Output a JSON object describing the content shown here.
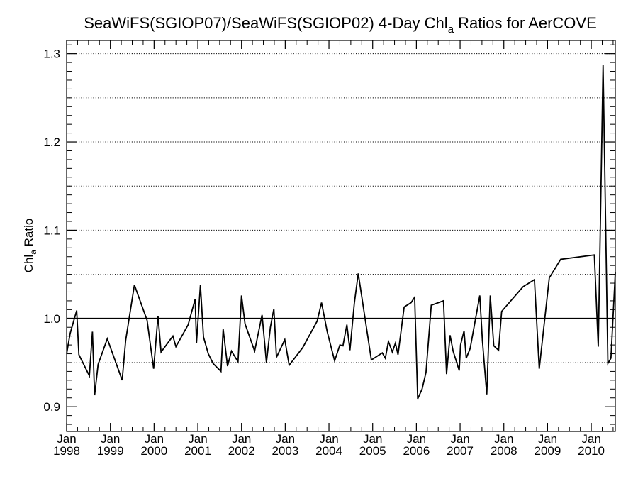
{
  "chart_data": {
    "type": "line",
    "title": "SeaWiFS(SGIOP07)/SeaWiFS(SGIOP02) 4-Day Chl",
    "title_subscript": "a",
    "title_suffix": " Ratios for AerCOVE",
    "ylabel": "Chl",
    "ylabel_subscript": "a",
    "ylabel_suffix": " Ratio",
    "xlabel": "",
    "xlim": [
      1998.0,
      2010.55
    ],
    "ylim": [
      0.872,
      1.315
    ],
    "grid": true,
    "reference_line": 1.0,
    "y_ticks": [
      {
        "value": 0.9,
        "label": "0.9"
      },
      {
        "value": 1.0,
        "label": "1.0"
      },
      {
        "value": 1.1,
        "label": "1.1"
      },
      {
        "value": 1.2,
        "label": "1.2"
      },
      {
        "value": 1.3,
        "label": "1.3"
      }
    ],
    "y_gridlines": [
      0.95,
      1.0,
      1.05,
      1.1,
      1.15,
      1.2,
      1.25,
      1.3
    ],
    "x_ticks": [
      {
        "value": 1998,
        "month": "Jan",
        "year": "1998"
      },
      {
        "value": 1999,
        "month": "Jan",
        "year": "1999"
      },
      {
        "value": 2000,
        "month": "Jan",
        "year": "2000"
      },
      {
        "value": 2001,
        "month": "Jan",
        "year": "2001"
      },
      {
        "value": 2002,
        "month": "Jan",
        "year": "2002"
      },
      {
        "value": 2003,
        "month": "Jan",
        "year": "2003"
      },
      {
        "value": 2004,
        "month": "Jan",
        "year": "2004"
      },
      {
        "value": 2005,
        "month": "Jan",
        "year": "2005"
      },
      {
        "value": 2006,
        "month": "Jan",
        "year": "2006"
      },
      {
        "value": 2007,
        "month": "Jan",
        "year": "2007"
      },
      {
        "value": 2008,
        "month": "Jan",
        "year": "2008"
      },
      {
        "value": 2009,
        "month": "Jan",
        "year": "2009"
      },
      {
        "value": 2010,
        "month": "Jan",
        "year": "2010"
      }
    ],
    "series": [
      {
        "points": [
          [
            1998.0,
            0.96
          ],
          [
            1998.08,
            0.983
          ],
          [
            1998.23,
            1.009
          ],
          [
            1998.28,
            0.959
          ],
          [
            1998.52,
            0.935
          ],
          [
            1998.59,
            0.985
          ],
          [
            1998.64,
            0.913
          ],
          [
            1998.72,
            0.948
          ],
          [
            1998.93,
            0.977
          ],
          [
            1999.09,
            0.955
          ],
          [
            1999.27,
            0.93
          ],
          [
            1999.35,
            0.975
          ],
          [
            1999.55,
            1.038
          ],
          [
            1999.84,
            0.998
          ],
          [
            1999.99,
            0.943
          ],
          [
            2000.09,
            1.003
          ],
          [
            2000.16,
            0.962
          ],
          [
            2000.43,
            0.98
          ],
          [
            2000.5,
            0.968
          ],
          [
            2000.78,
            0.993
          ],
          [
            2000.94,
            1.022
          ],
          [
            2000.97,
            0.972
          ],
          [
            2001.06,
            1.038
          ],
          [
            2001.13,
            0.979
          ],
          [
            2001.24,
            0.96
          ],
          [
            2001.35,
            0.949
          ],
          [
            2001.53,
            0.94
          ],
          [
            2001.58,
            0.988
          ],
          [
            2001.68,
            0.946
          ],
          [
            2001.77,
            0.963
          ],
          [
            2001.92,
            0.951
          ],
          [
            2002.0,
            1.026
          ],
          [
            2002.08,
            0.994
          ],
          [
            2002.3,
            0.963
          ],
          [
            2002.47,
            1.004
          ],
          [
            2002.57,
            0.95
          ],
          [
            2002.66,
            0.99
          ],
          [
            2002.74,
            1.011
          ],
          [
            2002.8,
            0.956
          ],
          [
            2002.99,
            0.976
          ],
          [
            2003.09,
            0.947
          ],
          [
            2003.4,
            0.967
          ],
          [
            2003.73,
            0.997
          ],
          [
            2003.83,
            1.018
          ],
          [
            2003.96,
            0.985
          ],
          [
            2004.13,
            0.952
          ],
          [
            2004.25,
            0.97
          ],
          [
            2004.32,
            0.969
          ],
          [
            2004.41,
            0.993
          ],
          [
            2004.48,
            0.964
          ],
          [
            2004.58,
            1.017
          ],
          [
            2004.67,
            1.051
          ],
          [
            2004.97,
            0.953
          ],
          [
            2005.22,
            0.961
          ],
          [
            2005.29,
            0.955
          ],
          [
            2005.36,
            0.974
          ],
          [
            2005.45,
            0.962
          ],
          [
            2005.52,
            0.972
          ],
          [
            2005.58,
            0.959
          ],
          [
            2005.72,
            1.013
          ],
          [
            2005.88,
            1.018
          ],
          [
            2005.96,
            1.024
          ],
          [
            2006.03,
            0.909
          ],
          [
            2006.13,
            0.92
          ],
          [
            2006.22,
            0.939
          ],
          [
            2006.34,
            1.015
          ],
          [
            2006.62,
            1.02
          ],
          [
            2006.69,
            0.937
          ],
          [
            2006.77,
            0.981
          ],
          [
            2006.84,
            0.963
          ],
          [
            2006.98,
            0.941
          ],
          [
            2007.01,
            0.97
          ],
          [
            2007.09,
            0.986
          ],
          [
            2007.14,
            0.955
          ],
          [
            2007.23,
            0.966
          ],
          [
            2007.45,
            1.026
          ],
          [
            2007.51,
            0.975
          ],
          [
            2007.61,
            0.914
          ],
          [
            2007.69,
            1.026
          ],
          [
            2007.77,
            0.969
          ],
          [
            2007.88,
            0.964
          ],
          [
            2007.95,
            1.008
          ],
          [
            2008.44,
            1.036
          ],
          [
            2008.7,
            1.044
          ],
          [
            2008.81,
            0.943
          ],
          [
            2009.04,
            1.046
          ],
          [
            2009.3,
            1.067
          ],
          [
            2010.07,
            1.072
          ],
          [
            2010.16,
            0.968
          ],
          [
            2010.27,
            1.287
          ],
          [
            2010.38,
            0.949
          ],
          [
            2010.45,
            0.955
          ],
          [
            2010.55,
            1.052
          ]
        ]
      }
    ]
  }
}
